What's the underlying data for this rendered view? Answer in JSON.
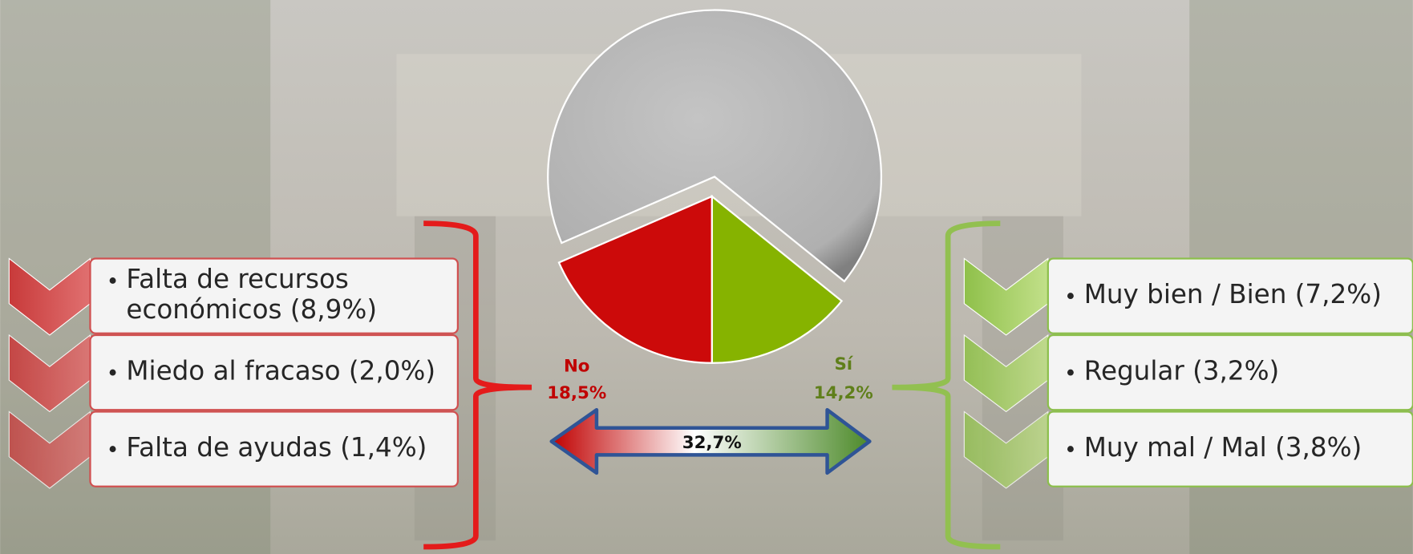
{
  "chart_data": {
    "type": "pie",
    "categories": [
      "Sí",
      "No",
      null
    ],
    "values": [
      14.2,
      18.5,
      67.3
    ],
    "value_labels": [
      "14,2%",
      "18,5%",
      null
    ],
    "colors": [
      "#86b300",
      "#cc0a0a",
      "#b8b8b8"
    ],
    "total_label": "32,7%"
  },
  "left_list": {
    "items": [
      [
        "Falta de recursos",
        "económicos (8,9%)"
      ],
      [
        "Miedo al fracaso (2,0%)"
      ],
      [
        "Falta de ayudas (1,4%)"
      ]
    ]
  },
  "right_list": {
    "items": [
      [
        "Muy bien / Bien (7,2%)"
      ],
      [
        "Regular (3,2%)"
      ],
      [
        "Muy mal / Mal (3,8%)"
      ]
    ]
  }
}
